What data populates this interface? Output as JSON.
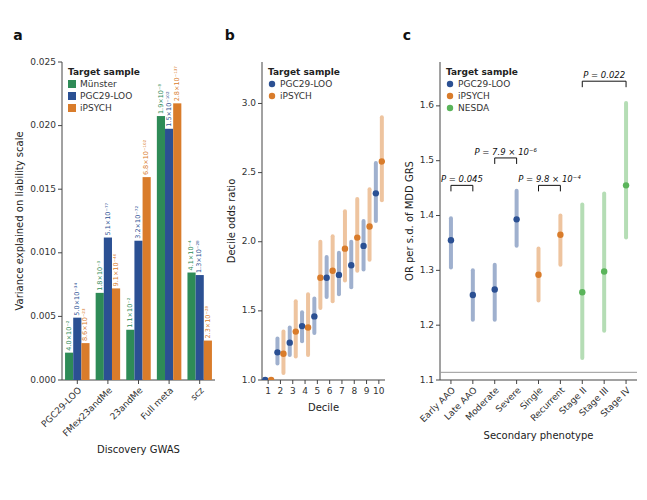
{
  "chart_data": [
    {
      "type": "bar",
      "title": "a",
      "xlabel": "Discovery GWAS",
      "ylabel": "Variance explained on liability scale",
      "categories": [
        "PGC29-LOO",
        "FMex23andMe",
        "23andMe",
        "Full meta",
        "scz"
      ],
      "series": [
        {
          "name": "Münster",
          "color": "#2e8b57",
          "values": [
            0.00215,
            0.00685,
            0.00395,
            0.02075,
            0.00845
          ],
          "annotations": [
            "4.0×10⁻²",
            "1.8×10⁻³",
            "1.1×10⁻²",
            "1.9×10⁻⁸",
            "4.1×10⁻⁴"
          ]
        },
        {
          "name": "PGC29-LOO",
          "color": "#2b5093",
          "values": [
            0.0049,
            0.0112,
            0.01095,
            0.01975,
            0.00825
          ],
          "annotations": [
            "5.0×10⁻³⁴",
            "5.1×10⁻⁷⁷",
            "3.2×10⁻⁷²",
            "1.5×10⁻¹⁰²",
            "1.3×10⁻²⁸"
          ]
        },
        {
          "name": "iPSYCH",
          "color": "#d97c2b",
          "values": [
            0.0029,
            0.0072,
            0.01595,
            0.02175,
            0.0031
          ],
          "annotations": [
            "8.6×10⁻²³",
            "9.1×10⁻⁴⁰",
            "6.8×10⁻¹⁰²",
            "2.8×10⁻¹³⁷",
            "2.3×10⁻²⁸"
          ]
        }
      ],
      "ylim": [
        0,
        0.025
      ],
      "yticks": [
        {
          "value": 0,
          "label": "0.000"
        },
        0.005,
        {
          "value": 0.01,
          "label": "0.010"
        },
        0.015,
        {
          "value": 0.02,
          "label": "0.020"
        },
        0.025
      ],
      "legend": "upper left",
      "legend_title": "Target sample",
      "grid": false
    },
    {
      "type": "scatter",
      "title": "b",
      "xlabel": "Decile",
      "ylabel": "Decile odds ratio",
      "x": [
        1,
        2,
        3,
        4,
        5,
        6,
        7,
        8,
        9,
        10
      ],
      "series": [
        {
          "name": "PGC29-LOO",
          "color": "#2b5093",
          "values": [
            1.0,
            1.2,
            1.27,
            1.39,
            1.46,
            1.74,
            1.76,
            1.83,
            1.97,
            2.35
          ],
          "lo": [
            1.0,
            1.12,
            1.18,
            1.28,
            1.34,
            1.6,
            1.62,
            1.67,
            1.8,
            2.15
          ],
          "hi": [
            1.0,
            1.3,
            1.38,
            1.49,
            1.59,
            1.89,
            1.92,
            2.0,
            2.15,
            2.57
          ]
        },
        {
          "name": "iPSYCH",
          "color": "#d97c2b",
          "values": [
            1.0,
            1.19,
            1.35,
            1.38,
            1.74,
            1.79,
            1.95,
            2.03,
            2.11,
            2.58
          ],
          "lo": [
            1.0,
            1.05,
            1.17,
            1.18,
            1.52,
            1.57,
            1.72,
            1.79,
            1.87,
            2.3
          ],
          "hi": [
            1.0,
            1.35,
            1.57,
            1.62,
            2.0,
            2.04,
            2.22,
            2.31,
            2.38,
            2.9
          ]
        }
      ],
      "xlim": [
        0.5,
        10.5
      ],
      "xticks": [
        1,
        2,
        3,
        4,
        5,
        6,
        7,
        8,
        9,
        10
      ],
      "ylim": [
        1.0,
        3.3
      ],
      "yticks": [
        {
          "value": 1.0,
          "label": "1.0"
        },
        1.5,
        {
          "value": 2.0,
          "label": "2.0"
        },
        2.5,
        {
          "value": 3.0,
          "label": "3.0"
        }
      ],
      "marker": "circle",
      "legend": "upper left",
      "legend_title": "Target sample",
      "grid": false
    },
    {
      "type": "scatter",
      "title": "c",
      "xlabel": "Secondary phenotype",
      "ylabel": "OR per s.d. of MDD GRS",
      "categories": [
        "Early AAO",
        "Late AAO",
        "Moderate",
        "Severe",
        "Single",
        "Recurrent",
        "Stage II",
        "Stage III",
        "Stage IV"
      ],
      "series": [
        {
          "name": "PGC29-LOO",
          "color": "#2b5093",
          "values": [
            1.355,
            1.255,
            1.265,
            1.393,
            null,
            null,
            null,
            null,
            null
          ],
          "lo": [
            1.305,
            1.21,
            1.21,
            1.345,
            null,
            null,
            null,
            null,
            null
          ],
          "hi": [
            1.395,
            1.3,
            1.31,
            1.445,
            null,
            null,
            null,
            null,
            null
          ]
        },
        {
          "name": "iPSYCH",
          "color": "#d97c2b",
          "values": [
            null,
            null,
            null,
            null,
            1.292,
            1.365,
            null,
            null,
            null
          ],
          "lo": [
            null,
            null,
            null,
            null,
            1.245,
            1.31,
            null,
            null,
            null
          ],
          "hi": [
            null,
            null,
            null,
            null,
            1.34,
            1.4,
            null,
            null,
            null
          ]
        },
        {
          "name": "NESDA",
          "color": "#5ab45a",
          "values": [
            null,
            null,
            null,
            null,
            null,
            null,
            1.26,
            1.298,
            1.455
          ],
          "lo": [
            null,
            null,
            null,
            null,
            null,
            null,
            1.14,
            1.19,
            1.36
          ],
          "hi": [
            null,
            null,
            null,
            null,
            null,
            null,
            1.42,
            1.44,
            1.605
          ]
        }
      ],
      "ylim": [
        1.1,
        1.68
      ],
      "yticks": [
        1.1,
        1.2,
        1.3,
        1.4,
        1.5,
        1.6
      ],
      "reference_line": 1.114,
      "brackets": [
        {
          "from": "Early AAO",
          "to": "Late AAO",
          "y": 1.455,
          "text": "P = 0.045"
        },
        {
          "from": "Moderate",
          "to": "Severe",
          "y": 1.505,
          "text": "P = 7.9 × 10⁻⁶"
        },
        {
          "from": "Single",
          "to": "Recurrent",
          "y": 1.455,
          "text": "P = 9.8 × 10⁻⁴"
        },
        {
          "from": "Stage II",
          "to": "Stage IV",
          "y": 1.645,
          "text": "P = 0.022"
        }
      ],
      "marker": "circle",
      "legend": "upper left",
      "legend_title": "Target sample",
      "grid": false
    }
  ]
}
